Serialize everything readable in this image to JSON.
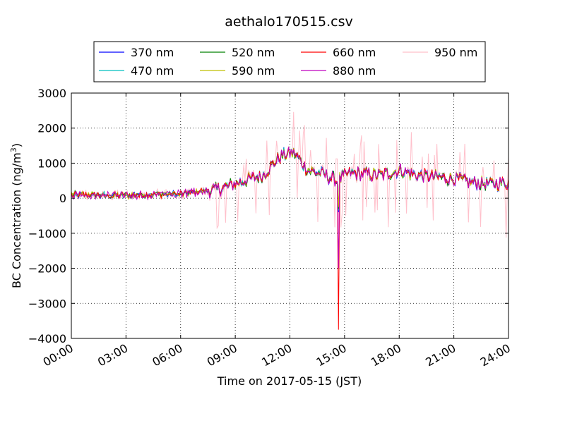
{
  "chart_data": {
    "type": "line",
    "title": "aethalo170515.csv",
    "xlabel": "Time on 2017-05-15 (JST)",
    "ylabel_main": "BC Concentration (ng/m",
    "ylabel_sup": "3",
    "ylabel_end": ")",
    "xlim": [
      0,
      24
    ],
    "ylim": [
      -4000,
      3000
    ],
    "x_ticks": [
      0,
      3,
      6,
      9,
      12,
      15,
      18,
      21,
      24
    ],
    "x_tick_labels": [
      "00:00",
      "03:00",
      "06:00",
      "09:00",
      "12:00",
      "15:00",
      "18:00",
      "21:00",
      "24:00"
    ],
    "y_ticks": [
      -4000,
      -3000,
      -2000,
      -1000,
      0,
      1000,
      2000,
      3000
    ],
    "y_tick_labels": [
      "−4000",
      "−3000",
      "−2000",
      "−1000",
      "0",
      "1000",
      "2000",
      "3000"
    ],
    "grid": true,
    "legend_position": "top-center, above plot",
    "series": [
      {
        "name": "370 nm",
        "color": "#0000ff"
      },
      {
        "name": "470 nm",
        "color": "#00bfbf"
      },
      {
        "name": "520 nm",
        "color": "#008000"
      },
      {
        "name": "590 nm",
        "color": "#bfbf00"
      },
      {
        "name": "660 nm",
        "color": "#ff0000"
      },
      {
        "name": "880 nm",
        "color": "#bf00bf"
      },
      {
        "name": "950 nm",
        "color": "#ffc0cb"
      }
    ],
    "profile_x": [
      0,
      3,
      6,
      8,
      9,
      10.5,
      11.5,
      12.2,
      13,
      14,
      14.6,
      15.2,
      16,
      17,
      18,
      19,
      20,
      21,
      22,
      23,
      24
    ],
    "profile_y": [
      100,
      80,
      120,
      250,
      420,
      650,
      1200,
      1300,
      800,
      650,
      500,
      700,
      700,
      650,
      800,
      650,
      600,
      550,
      450,
      400,
      450
    ],
    "spike_x": 14.65,
    "spike_min": {
      "660 nm": -3750,
      "880 nm": -2000,
      "370 nm": -400,
      "470 nm": -350,
      "520 nm": -300,
      "590 nm": -250,
      "950 nm": -1000
    }
  }
}
